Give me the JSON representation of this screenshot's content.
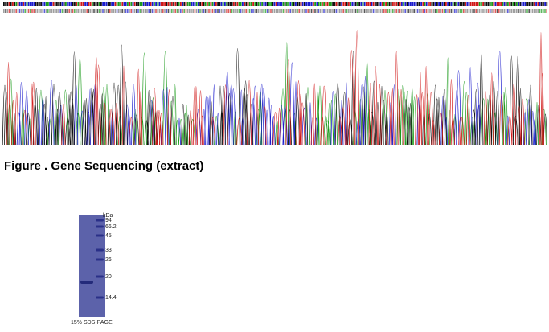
{
  "figure": {
    "caption": "Figure . Gene Sequencing (extract)"
  },
  "gel": {
    "unit": "kDa",
    "markers": [
      "94",
      "66.2",
      "45",
      "33",
      "26",
      "20",
      "14.4"
    ],
    "caption": "15% SDS-PAGE"
  }
}
